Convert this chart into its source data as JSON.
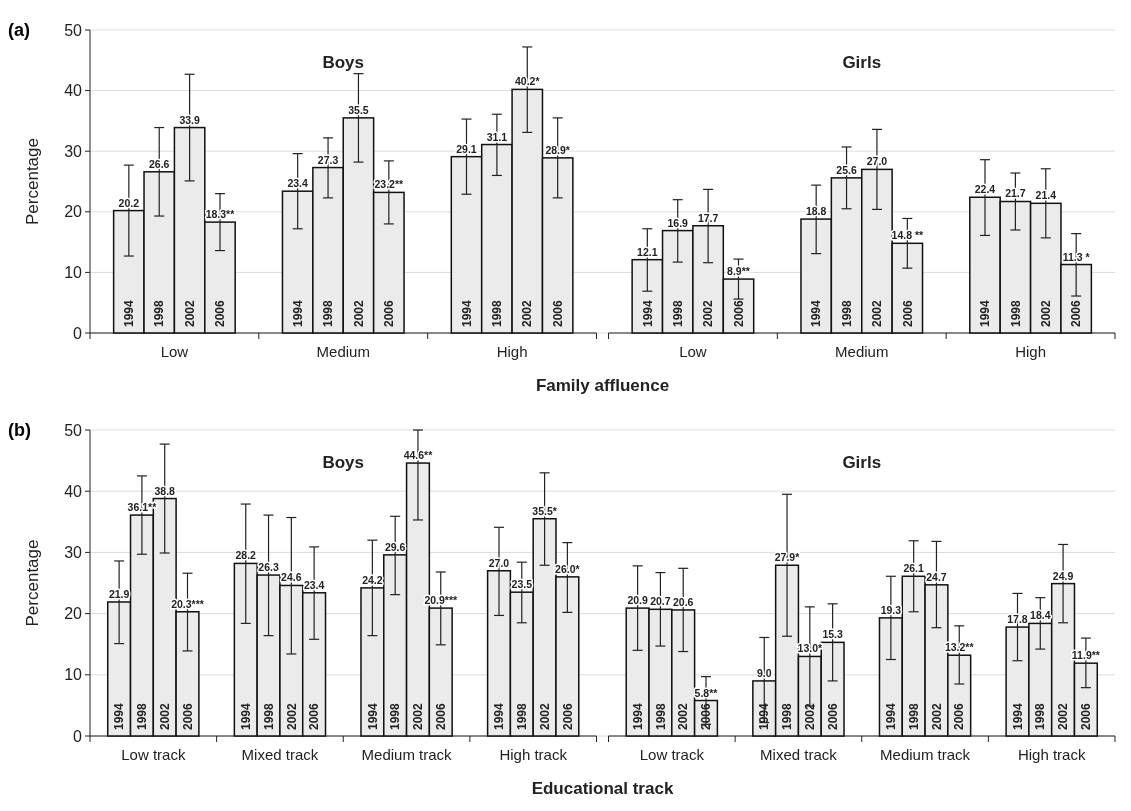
{
  "chart_data": [
    {
      "type": "bar",
      "title": "(a)",
      "xlabel": "Family affluence",
      "ylabel": "Percentage",
      "annotations": [
        "Boys",
        "Girls"
      ],
      "categories": [
        "Low",
        "Medium",
        "High",
        "Low",
        "Medium",
        "High"
      ],
      "ylim": [
        0,
        50
      ],
      "yticks": [
        0,
        10,
        20,
        30,
        40,
        50
      ],
      "grid": "y",
      "series": [
        {
          "name": "1994",
          "color": "#ebebeb",
          "values": [
            20.2,
            23.4,
            29.1,
            12.1,
            18.8,
            22.4
          ],
          "value_labels": [
            "20.2",
            "23.4",
            "29.1",
            "12.1",
            "18.8",
            "22.4"
          ],
          "errors": [
            [
              12.7,
              27.7
            ],
            [
              17.2,
              29.6
            ],
            [
              22.9,
              35.3
            ],
            [
              6.9,
              17.2
            ],
            [
              13.1,
              24.4
            ],
            [
              16.1,
              28.6
            ]
          ]
        },
        {
          "name": "1998",
          "color": "#ebebeb",
          "values": [
            26.6,
            27.3,
            31.1,
            16.9,
            25.6,
            21.7
          ],
          "value_labels": [
            "26.6",
            "27.3",
            "31.1",
            "16.9",
            "25.6",
            "21.7"
          ],
          "errors": [
            [
              19.3,
              33.9
            ],
            [
              22.3,
              32.2
            ],
            [
              26.0,
              36.1
            ],
            [
              11.7,
              22.0
            ],
            [
              20.5,
              30.7
            ],
            [
              17.0,
              26.4
            ]
          ]
        },
        {
          "name": "2002",
          "color": "#ebebeb",
          "values": [
            33.9,
            35.5,
            40.2,
            17.7,
            27.0,
            21.4
          ],
          "value_labels": [
            "33.9",
            "35.5",
            "40.2*",
            "17.7",
            "27.0",
            "21.4"
          ],
          "errors": [
            [
              25.1,
              42.7
            ],
            [
              28.2,
              42.8
            ],
            [
              33.1,
              47.2
            ],
            [
              11.6,
              23.7
            ],
            [
              20.4,
              33.6
            ],
            [
              15.7,
              27.1
            ]
          ]
        },
        {
          "name": "2006",
          "color": "#ebebeb",
          "values": [
            18.3,
            23.2,
            28.9,
            8.9,
            14.8,
            11.3
          ],
          "value_labels": [
            "18.3**",
            "23.2**",
            "28.9*",
            "8.9**",
            "14.8 **",
            "11.3 *"
          ],
          "errors": [
            [
              13.6,
              23.0
            ],
            [
              18.0,
              28.4
            ],
            [
              22.3,
              35.5
            ],
            [
              5.6,
              12.2
            ],
            [
              10.7,
              18.9
            ],
            [
              6.1,
              16.4
            ]
          ]
        }
      ]
    },
    {
      "type": "bar",
      "title": "(b)",
      "xlabel": "Educational track",
      "ylabel": "Percentage",
      "annotations": [
        "Boys",
        "Girls"
      ],
      "categories": [
        "Low track",
        "Mixed track",
        "Medium track",
        "High track",
        "Low track",
        "Mixed track",
        "Medium track",
        "High track"
      ],
      "ylim": [
        0,
        50
      ],
      "yticks": [
        0,
        10,
        20,
        30,
        40,
        50
      ],
      "grid": "y",
      "series": [
        {
          "name": "1994",
          "color": "#ebebeb",
          "values": [
            21.9,
            28.2,
            24.2,
            27.0,
            20.9,
            9.0,
            19.3,
            17.8
          ],
          "value_labels": [
            "21.9",
            "28.2",
            "24.2",
            "27.0",
            "20.9",
            "9.0",
            "19.3",
            "17.8"
          ],
          "errors": [
            [
              15.1,
              28.6
            ],
            [
              18.4,
              37.9
            ],
            [
              16.4,
              32.0
            ],
            [
              19.7,
              34.1
            ],
            [
              14.0,
              27.8
            ],
            [
              2.2,
              16.1
            ],
            [
              12.5,
              26.1
            ],
            [
              12.3,
              23.3
            ]
          ]
        },
        {
          "name": "1998",
          "color": "#ebebeb",
          "values": [
            36.1,
            26.3,
            29.6,
            23.5,
            20.7,
            27.9,
            26.1,
            18.4
          ],
          "value_labels": [
            "36.1**",
            "26.3",
            "29.6",
            "23.5",
            "20.7",
            "27.9*",
            "26.1",
            "18.4"
          ],
          "errors": [
            [
              29.7,
              42.5
            ],
            [
              16.4,
              36.1
            ],
            [
              23.1,
              35.9
            ],
            [
              18.5,
              28.4
            ],
            [
              14.7,
              26.7
            ],
            [
              16.3,
              39.5
            ],
            [
              20.3,
              31.9
            ],
            [
              14.2,
              22.6
            ]
          ]
        },
        {
          "name": "2002",
          "color": "#ebebeb",
          "values": [
            38.8,
            24.6,
            44.6,
            35.5,
            20.6,
            13.0,
            24.7,
            24.9
          ],
          "value_labels": [
            "38.8",
            "24.6",
            "44.6**",
            "35.5*",
            "20.6",
            "13.0*",
            "24.7",
            "24.9"
          ],
          "errors": [
            [
              29.9,
              47.7
            ],
            [
              13.4,
              35.7
            ],
            [
              35.3,
              50
            ],
            [
              27.9,
              43.0
            ],
            [
              13.8,
              27.4
            ],
            [
              4.9,
              21.1
            ],
            [
              17.7,
              31.8
            ],
            [
              18.5,
              31.3
            ]
          ]
        },
        {
          "name": "2006",
          "color": "#ebebeb",
          "values": [
            20.3,
            23.4,
            20.9,
            26.0,
            5.8,
            15.3,
            13.2,
            11.9
          ],
          "value_labels": [
            "20.3***",
            "23.4",
            "20.9***",
            "26.0*",
            "5.8**",
            "15.3",
            "13.2**",
            "11.9**"
          ],
          "errors": [
            [
              13.9,
              26.6
            ],
            [
              15.8,
              30.9
            ],
            [
              14.9,
              26.8
            ],
            [
              20.2,
              31.6
            ],
            [
              1.9,
              9.7
            ],
            [
              9.0,
              21.6
            ],
            [
              8.5,
              18.0
            ],
            [
              7.9,
              16.0
            ]
          ]
        }
      ]
    }
  ]
}
